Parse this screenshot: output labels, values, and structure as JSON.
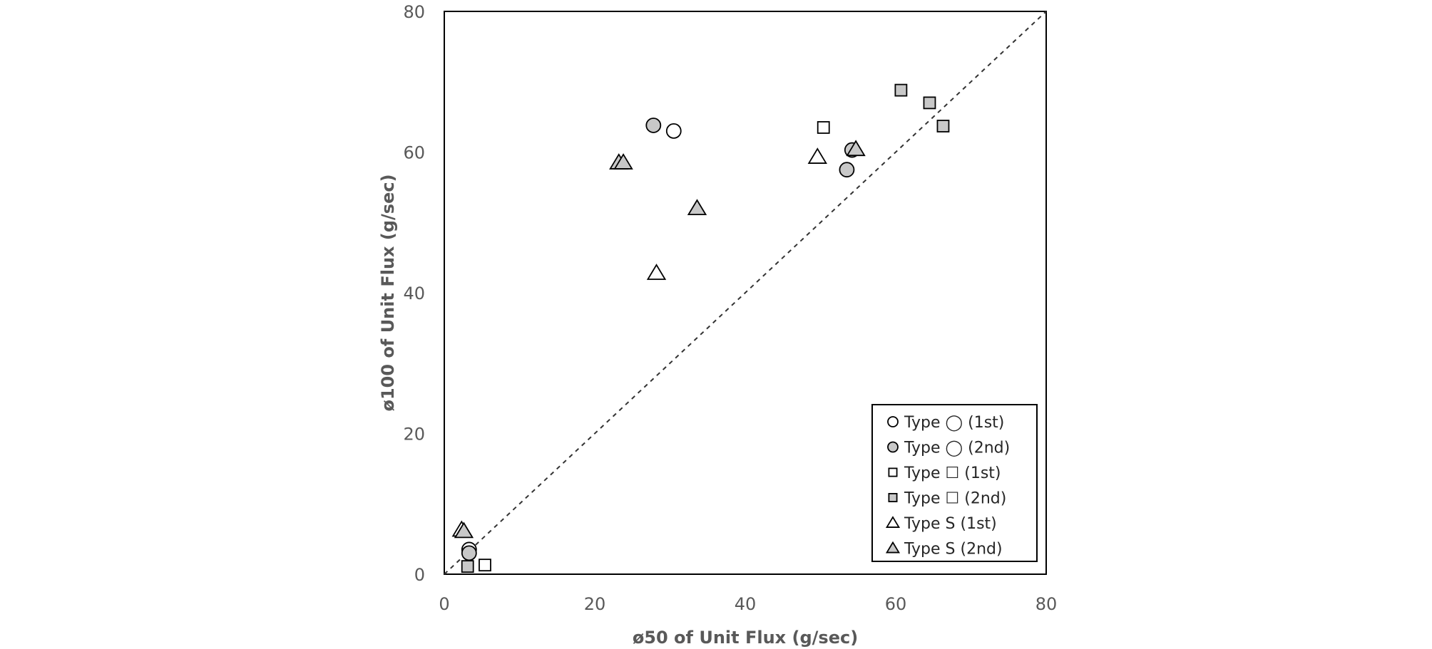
{
  "chart_data": {
    "type": "scatter",
    "title": "",
    "xlabel": "ø50 of Unit Flux (g/sec)",
    "ylabel": "ø100 of Unit Flux (g/sec)",
    "xlim": [
      0,
      80
    ],
    "ylim": [
      0,
      80
    ],
    "xticks": [
      0,
      20,
      40,
      60,
      80
    ],
    "yticks": [
      0,
      20,
      40,
      60,
      80
    ],
    "grid": false,
    "legend_position": "bottom-right",
    "reference_line": {
      "style": "dashed",
      "x": [
        0,
        80
      ],
      "y": [
        0,
        80
      ]
    },
    "series": [
      {
        "name": "Type ◯ (1st)",
        "marker": "circle",
        "fill": "#ffffff",
        "points": [
          [
            30.5,
            63.0
          ],
          [
            3.3,
            3.5
          ]
        ]
      },
      {
        "name": "Type ◯ (2nd)",
        "marker": "circle",
        "fill": "#c8c8c8",
        "points": [
          [
            27.8,
            63.8
          ],
          [
            53.5,
            57.5
          ],
          [
            54.2,
            60.3
          ],
          [
            3.3,
            3.0
          ]
        ]
      },
      {
        "name": "Type ☐ (1st)",
        "marker": "square",
        "fill": "#ffffff",
        "points": [
          [
            50.4,
            63.5
          ],
          [
            5.4,
            1.3
          ]
        ]
      },
      {
        "name": "Type ☐ (2nd)",
        "marker": "square",
        "fill": "#c8c8c8",
        "points": [
          [
            60.7,
            68.8
          ],
          [
            64.5,
            67.0
          ],
          [
            66.3,
            63.7
          ],
          [
            3.1,
            1.1
          ]
        ]
      },
      {
        "name": "Type S (1st)",
        "marker": "triangle",
        "fill": "#ffffff",
        "points": [
          [
            28.2,
            42.8
          ],
          [
            49.6,
            59.3
          ],
          [
            2.3,
            6.3
          ]
        ]
      },
      {
        "name": "Type S (2nd)",
        "marker": "triangle",
        "fill": "#c8c8c8",
        "points": [
          [
            23.2,
            58.5
          ],
          [
            23.8,
            58.5
          ],
          [
            33.6,
            52.0
          ],
          [
            54.7,
            60.4
          ],
          [
            2.6,
            6.1
          ]
        ]
      }
    ]
  }
}
